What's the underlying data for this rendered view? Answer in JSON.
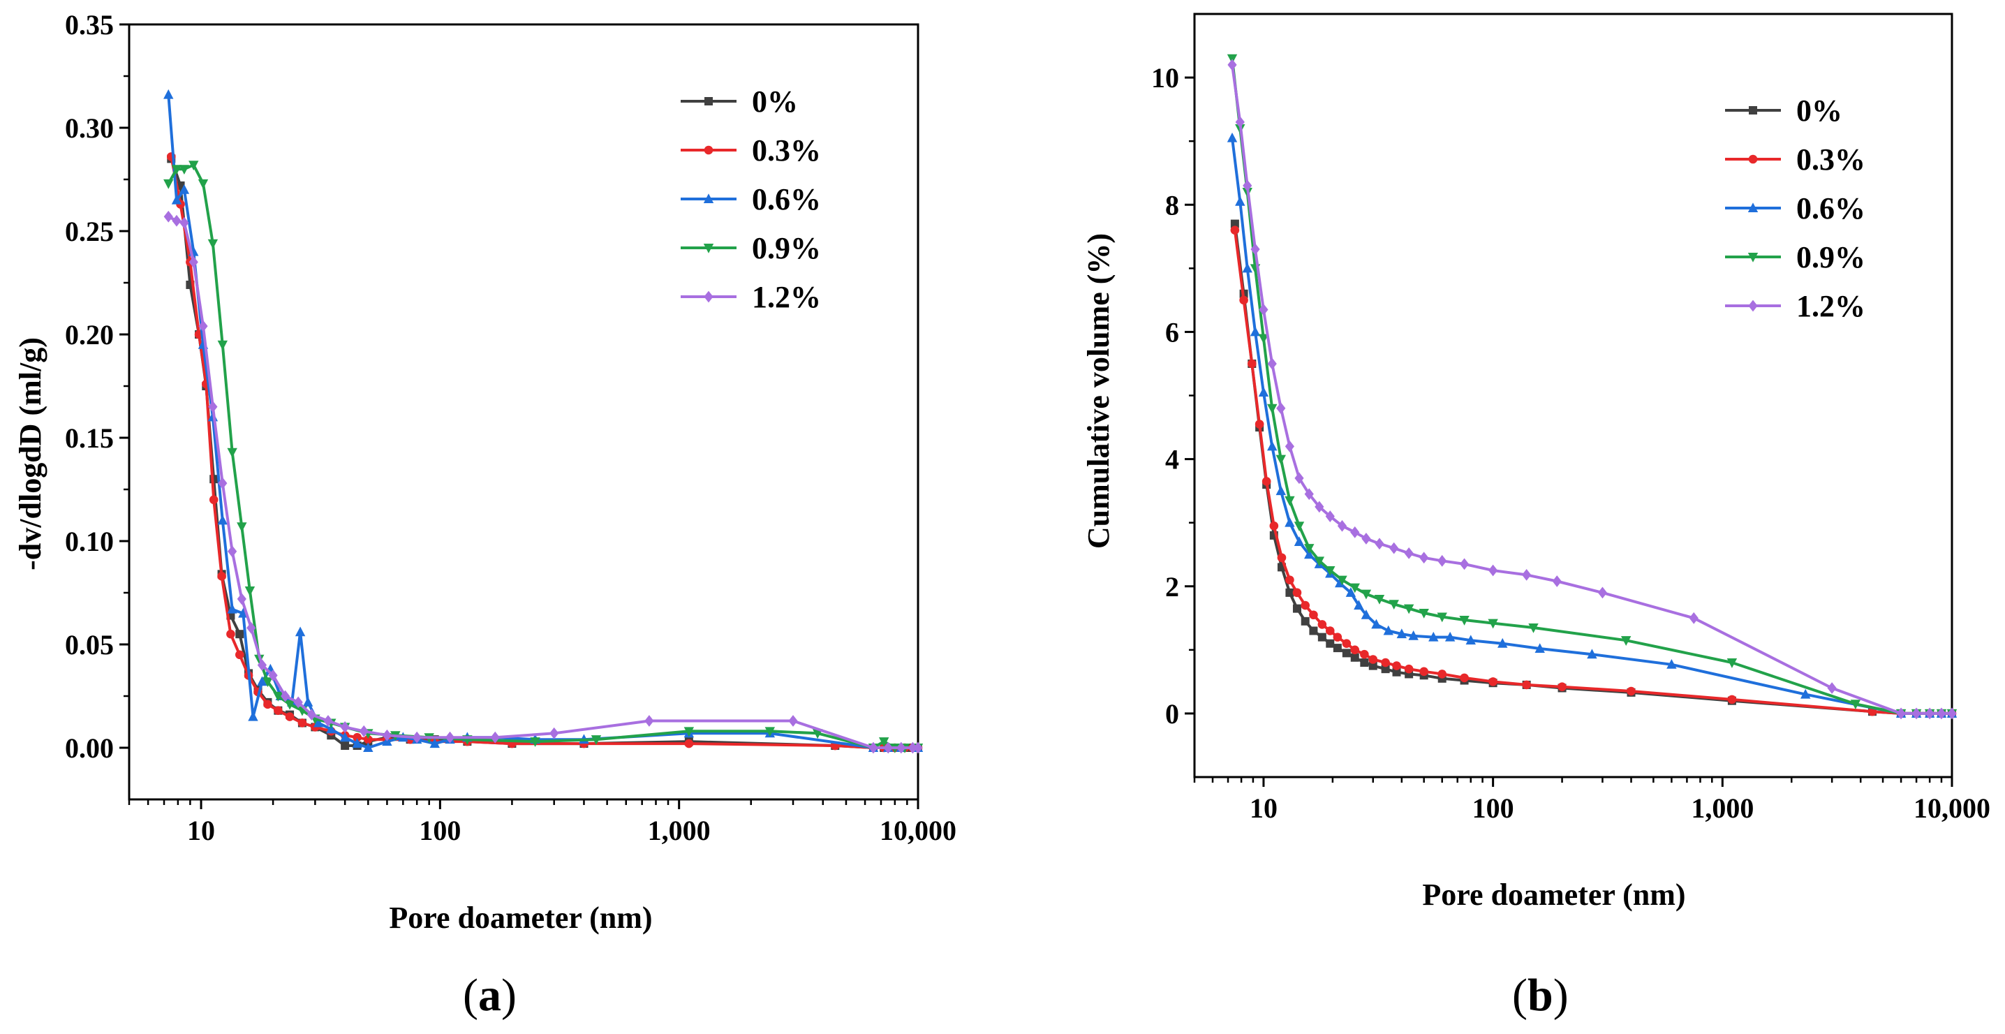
{
  "chart_data": [
    {
      "id": "a",
      "type": "line",
      "panel_label_open": "(",
      "panel_label_letter": "a",
      "panel_label_close": ")",
      "xlabel": "Pore doameter (nm)",
      "ylabel": "-dv/dlogdD (ml/g)",
      "xscale": "log",
      "xlim": [
        5,
        10000
      ],
      "ylim": [
        -0.025,
        0.35
      ],
      "xticks": [
        10,
        100,
        1000,
        10000
      ],
      "xtick_labels": [
        "10",
        "100",
        "1,000",
        "10,000"
      ],
      "yticks": [
        0.0,
        0.05,
        0.1,
        0.15,
        0.2,
        0.25,
        0.3,
        0.35
      ],
      "ytick_labels": [
        "0.00",
        "0.05",
        "0.10",
        "0.15",
        "0.20",
        "0.25",
        "0.30",
        "0.35"
      ],
      "legend_position": "top-right",
      "series": [
        {
          "name": "0%",
          "color": "#404040",
          "marker": "square",
          "x": [
            7.5,
            8.2,
            9.0,
            9.8,
            10.5,
            11.3,
            12.2,
            13.3,
            14.5,
            15.8,
            17.3,
            19.0,
            21.0,
            23.5,
            26.5,
            30,
            35,
            40,
            45,
            50,
            60,
            75,
            95,
            130,
            200,
            400,
            1100,
            4500,
            6500,
            7200,
            8000,
            8800,
            9500,
            10000
          ],
          "y": [
            0.285,
            0.272,
            0.224,
            0.2,
            0.175,
            0.13,
            0.084,
            0.064,
            0.055,
            0.036,
            0.028,
            0.022,
            0.018,
            0.016,
            0.012,
            0.01,
            0.006,
            0.001,
            0.001,
            0.003,
            0.005,
            0.004,
            0.004,
            0.003,
            0.002,
            0.002,
            0.003,
            0.001,
            0.0,
            0.0,
            0.0,
            0.0,
            0.0,
            0.0
          ]
        },
        {
          "name": "0.3%",
          "color": "#e8282a",
          "marker": "circle",
          "x": [
            7.5,
            8.2,
            9.0,
            9.8,
            10.5,
            11.3,
            12.2,
            13.3,
            14.5,
            15.8,
            17.3,
            19.0,
            21.0,
            23.5,
            26.5,
            30,
            35,
            40,
            45,
            50,
            60,
            75,
            95,
            130,
            200,
            400,
            1100,
            4500,
            6500,
            7200,
            8000,
            8800,
            9500,
            10000
          ],
          "y": [
            0.286,
            0.263,
            0.235,
            0.2,
            0.176,
            0.12,
            0.083,
            0.055,
            0.045,
            0.035,
            0.027,
            0.021,
            0.018,
            0.015,
            0.012,
            0.01,
            0.008,
            0.006,
            0.005,
            0.004,
            0.004,
            0.004,
            0.003,
            0.003,
            0.002,
            0.002,
            0.002,
            0.001,
            0.0,
            0.0,
            0.0,
            0.0,
            0.0,
            0.0
          ]
        },
        {
          "name": "0.6%",
          "color": "#1f6fdb",
          "marker": "triangle-up",
          "x": [
            7.3,
            7.9,
            8.5,
            9.3,
            10.2,
            11.2,
            12.3,
            13.5,
            15.0,
            16.5,
            18.0,
            19.5,
            21.5,
            24.0,
            26.0,
            28.0,
            31,
            35,
            40,
            45,
            50,
            60,
            70,
            80,
            95,
            110,
            130,
            170,
            250,
            400,
            1100,
            2400,
            6500,
            7500,
            8500,
            10000
          ],
          "y": [
            0.316,
            0.265,
            0.27,
            0.24,
            0.195,
            0.16,
            0.11,
            0.067,
            0.065,
            0.015,
            0.032,
            0.038,
            0.025,
            0.022,
            0.056,
            0.022,
            0.012,
            0.009,
            0.005,
            0.002,
            0.0,
            0.003,
            0.005,
            0.004,
            0.002,
            0.004,
            0.005,
            0.005,
            0.004,
            0.004,
            0.007,
            0.007,
            0.0,
            0.0,
            0.0,
            0.0
          ]
        },
        {
          "name": "0.9%",
          "color": "#22a24a",
          "marker": "triangle-down",
          "x": [
            7.3,
            7.9,
            8.5,
            9.3,
            10.2,
            11.2,
            12.3,
            13.5,
            14.8,
            16.0,
            17.5,
            19.0,
            21.0,
            23.5,
            26.5,
            30,
            35,
            40,
            50,
            65,
            90,
            130,
            250,
            450,
            1100,
            2400,
            3800,
            6500,
            7200,
            8000,
            8800,
            10000
          ],
          "y": [
            0.273,
            0.28,
            0.28,
            0.282,
            0.273,
            0.244,
            0.195,
            0.143,
            0.107,
            0.076,
            0.043,
            0.032,
            0.025,
            0.021,
            0.018,
            0.014,
            0.012,
            0.01,
            0.007,
            0.006,
            0.005,
            0.004,
            0.003,
            0.004,
            0.008,
            0.008,
            0.007,
            0.0,
            0.003,
            0.0,
            0.0,
            0.0
          ]
        },
        {
          "name": "1.2%",
          "color": "#a86fe0",
          "marker": "diamond",
          "x": [
            7.3,
            7.9,
            8.5,
            9.3,
            10.2,
            11.2,
            12.3,
            13.5,
            14.8,
            16.2,
            18.0,
            20.0,
            22.5,
            25.5,
            29,
            34,
            40,
            48,
            60,
            80,
            110,
            170,
            300,
            750,
            3000,
            6500,
            7500,
            8500,
            9500,
            10000
          ],
          "y": [
            0.257,
            0.255,
            0.254,
            0.235,
            0.204,
            0.165,
            0.128,
            0.095,
            0.072,
            0.058,
            0.04,
            0.035,
            0.025,
            0.022,
            0.016,
            0.013,
            0.01,
            0.008,
            0.006,
            0.005,
            0.005,
            0.005,
            0.007,
            0.013,
            0.013,
            0.0,
            0.0,
            0.0,
            0.0,
            0.0
          ]
        }
      ]
    },
    {
      "id": "b",
      "type": "line",
      "panel_label_open": "(",
      "panel_label_letter": "b",
      "panel_label_close": ")",
      "xlabel": "Pore doameter (nm)",
      "ylabel": "Cumulative volume (%)",
      "xscale": "log",
      "xlim": [
        5,
        10000
      ],
      "ylim": [
        -1,
        11
      ],
      "xticks": [
        10,
        100,
        1000,
        10000
      ],
      "xtick_labels": [
        "10",
        "100",
        "1,000",
        "10,000"
      ],
      "yticks": [
        0,
        2,
        4,
        6,
        8,
        10
      ],
      "ytick_labels": [
        "0",
        "2",
        "4",
        "6",
        "8",
        "10"
      ],
      "legend_position": "top-right",
      "series": [
        {
          "name": "0%",
          "color": "#404040",
          "marker": "square",
          "x": [
            7.5,
            8.2,
            8.9,
            9.6,
            10.3,
            11.1,
            12.0,
            13.0,
            14.0,
            15.2,
            16.5,
            18.0,
            19.5,
            21.0,
            23.0,
            25.0,
            27.5,
            30,
            34,
            38,
            43,
            50,
            60,
            75,
            100,
            140,
            200,
            400,
            1100,
            4500,
            6000,
            7000,
            8000,
            9000,
            10000
          ],
          "y": [
            7.7,
            6.6,
            5.5,
            4.5,
            3.6,
            2.8,
            2.3,
            1.9,
            1.65,
            1.45,
            1.3,
            1.2,
            1.1,
            1.03,
            0.95,
            0.88,
            0.8,
            0.75,
            0.7,
            0.65,
            0.62,
            0.6,
            0.55,
            0.52,
            0.48,
            0.45,
            0.4,
            0.33,
            0.2,
            0.03,
            0.0,
            0.0,
            0.0,
            0.0,
            0.0
          ]
        },
        {
          "name": "0.3%",
          "color": "#e8282a",
          "marker": "circle",
          "x": [
            7.5,
            8.2,
            8.9,
            9.6,
            10.3,
            11.1,
            12.0,
            13.0,
            14.0,
            15.2,
            16.5,
            18.0,
            19.5,
            21.0,
            23.0,
            25.0,
            27.5,
            30,
            34,
            38,
            43,
            50,
            60,
            75,
            100,
            140,
            200,
            400,
            1100,
            4500,
            6000,
            7000,
            8000,
            9000,
            10000
          ],
          "y": [
            7.6,
            6.5,
            5.5,
            4.55,
            3.65,
            2.95,
            2.45,
            2.1,
            1.9,
            1.7,
            1.55,
            1.4,
            1.3,
            1.2,
            1.1,
            1.0,
            0.93,
            0.85,
            0.8,
            0.75,
            0.7,
            0.66,
            0.62,
            0.56,
            0.5,
            0.45,
            0.42,
            0.35,
            0.22,
            0.03,
            0.0,
            0.0,
            0.0,
            0.0,
            0.0
          ]
        },
        {
          "name": "0.6%",
          "color": "#1f6fdb",
          "marker": "triangle-up",
          "x": [
            7.3,
            7.9,
            8.5,
            9.2,
            10.0,
            10.9,
            11.9,
            13.0,
            14.3,
            15.8,
            17.5,
            19.5,
            21.5,
            24.0,
            26.0,
            28.0,
            31,
            35,
            40,
            45,
            55,
            65,
            80,
            110,
            160,
            270,
            600,
            2300,
            6000,
            7000,
            8000,
            9000,
            10000
          ],
          "y": [
            9.05,
            8.05,
            7.0,
            6.0,
            5.05,
            4.2,
            3.5,
            3.0,
            2.7,
            2.5,
            2.35,
            2.2,
            2.05,
            1.9,
            1.7,
            1.55,
            1.4,
            1.3,
            1.25,
            1.22,
            1.2,
            1.2,
            1.15,
            1.1,
            1.02,
            0.93,
            0.77,
            0.3,
            0.0,
            0.0,
            0.0,
            0.0,
            0.0
          ]
        },
        {
          "name": "0.9%",
          "color": "#22a24a",
          "marker": "triangle-down",
          "x": [
            7.3,
            7.9,
            8.5,
            9.2,
            10.0,
            10.9,
            11.9,
            13.0,
            14.3,
            15.8,
            17.5,
            19.5,
            22.0,
            25.0,
            28.0,
            32,
            37,
            43,
            50,
            60,
            75,
            100,
            150,
            380,
            1100,
            3800,
            6000,
            7000,
            8000,
            9000,
            10000
          ],
          "y": [
            10.3,
            9.2,
            8.2,
            7.0,
            5.9,
            4.8,
            4.0,
            3.35,
            2.95,
            2.6,
            2.4,
            2.25,
            2.1,
            1.98,
            1.88,
            1.8,
            1.72,
            1.65,
            1.58,
            1.52,
            1.47,
            1.42,
            1.35,
            1.15,
            0.8,
            0.15,
            0.0,
            0.0,
            0.0,
            0.0,
            0.0
          ]
        },
        {
          "name": "1.2%",
          "color": "#a86fe0",
          "marker": "diamond",
          "x": [
            7.3,
            7.9,
            8.5,
            9.2,
            10.0,
            10.9,
            11.9,
            13.0,
            14.3,
            15.8,
            17.5,
            19.5,
            22.0,
            25.0,
            28.0,
            32,
            37,
            43,
            50,
            60,
            75,
            100,
            140,
            190,
            300,
            750,
            3000,
            6000,
            7000,
            8000,
            9000,
            10000
          ],
          "y": [
            10.2,
            9.3,
            8.3,
            7.3,
            6.35,
            5.5,
            4.8,
            4.2,
            3.7,
            3.45,
            3.25,
            3.1,
            2.95,
            2.85,
            2.75,
            2.67,
            2.6,
            2.52,
            2.45,
            2.4,
            2.35,
            2.25,
            2.18,
            2.08,
            1.9,
            1.5,
            0.4,
            0.0,
            0.0,
            0.0,
            0.0,
            0.0
          ]
        }
      ]
    }
  ]
}
